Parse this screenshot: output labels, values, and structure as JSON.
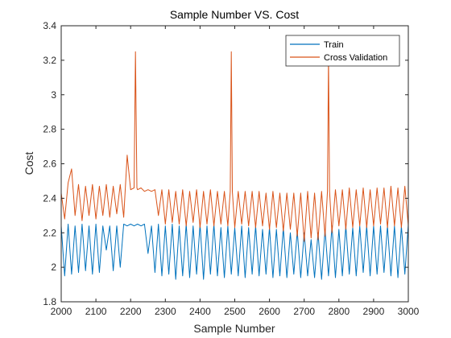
{
  "chart_data": {
    "type": "line",
    "title": "Sample Number VS. Cost",
    "xlabel": "Sample Number",
    "ylabel": "Cost",
    "xlim": [
      2000,
      3000
    ],
    "ylim": [
      1.8,
      3.4
    ],
    "xticks": [
      2000,
      2100,
      2200,
      2300,
      2400,
      2500,
      2600,
      2700,
      2800,
      2900,
      3000
    ],
    "xtick_labels": [
      "2000",
      "2100",
      "2200",
      "2300",
      "2400",
      "2500",
      "2600",
      "2700",
      "2800",
      "2900",
      "3000"
    ],
    "yticks": [
      1.8,
      2,
      2.2,
      2.4,
      2.6,
      2.8,
      3,
      3.2,
      3.4
    ],
    "ytick_labels": [
      "1.8",
      "2",
      "2.2",
      "2.4",
      "2.6",
      "2.8",
      "3",
      "3.2",
      "3.4"
    ],
    "grid": false,
    "legend_position": "top-right",
    "series": [
      {
        "name": "Train",
        "color": "#0072BD",
        "x": [
          2000,
          2010,
          2020,
          2030,
          2040,
          2050,
          2060,
          2070,
          2080,
          2090,
          2100,
          2110,
          2120,
          2130,
          2140,
          2150,
          2160,
          2170,
          2180,
          2190,
          2200,
          2210,
          2220,
          2230,
          2240,
          2250,
          2260,
          2270,
          2280,
          2290,
          2300,
          2310,
          2320,
          2330,
          2340,
          2350,
          2360,
          2370,
          2380,
          2390,
          2400,
          2410,
          2420,
          2430,
          2440,
          2450,
          2460,
          2470,
          2480,
          2490,
          2500,
          2510,
          2520,
          2530,
          2540,
          2550,
          2560,
          2570,
          2580,
          2590,
          2600,
          2610,
          2620,
          2630,
          2640,
          2650,
          2660,
          2670,
          2680,
          2690,
          2700,
          2710,
          2720,
          2730,
          2740,
          2750,
          2760,
          2770,
          2780,
          2790,
          2800,
          2810,
          2820,
          2830,
          2840,
          2850,
          2860,
          2870,
          2880,
          2890,
          2900,
          2910,
          2920,
          2930,
          2940,
          2950,
          2960,
          2970,
          2980,
          2990,
          3000
        ],
        "y": [
          2.24,
          1.95,
          2.25,
          1.96,
          2.24,
          1.97,
          2.25,
          1.98,
          2.24,
          1.96,
          2.25,
          1.97,
          2.24,
          2.1,
          2.24,
          1.98,
          2.24,
          2.0,
          2.25,
          2.24,
          2.25,
          2.24,
          2.25,
          2.24,
          2.25,
          2.08,
          2.24,
          1.97,
          2.25,
          1.95,
          2.24,
          1.96,
          2.25,
          1.93,
          2.24,
          1.95,
          2.25,
          1.94,
          2.24,
          1.96,
          2.25,
          1.93,
          2.24,
          1.96,
          2.25,
          1.95,
          2.23,
          1.94,
          2.24,
          1.96,
          2.23,
          1.95,
          2.24,
          1.94,
          2.23,
          1.96,
          2.24,
          1.95,
          2.22,
          1.96,
          2.23,
          1.94,
          2.22,
          1.95,
          2.23,
          1.94,
          2.2,
          1.96,
          2.21,
          1.94,
          2.2,
          1.95,
          2.16,
          1.94,
          2.2,
          1.93,
          2.22,
          1.95,
          2.24,
          1.94,
          2.22,
          1.95,
          2.24,
          1.96,
          2.23,
          1.95,
          2.24,
          1.97,
          2.24,
          1.95,
          2.24,
          1.96,
          2.24,
          1.97,
          2.24,
          1.95,
          2.24,
          1.94,
          2.24,
          1.96,
          2.25
        ]
      },
      {
        "name": "Cross Validation",
        "color": "#D95319",
        "x": [
          2000,
          2010,
          2020,
          2030,
          2040,
          2050,
          2060,
          2070,
          2080,
          2090,
          2100,
          2110,
          2120,
          2130,
          2140,
          2150,
          2160,
          2170,
          2180,
          2190,
          2200,
          2210,
          2214,
          2218,
          2220,
          2230,
          2240,
          2250,
          2260,
          2270,
          2280,
          2290,
          2300,
          2310,
          2320,
          2330,
          2340,
          2350,
          2360,
          2370,
          2380,
          2390,
          2400,
          2410,
          2420,
          2430,
          2440,
          2450,
          2460,
          2470,
          2480,
          2487,
          2490,
          2493,
          2500,
          2510,
          2520,
          2530,
          2540,
          2550,
          2560,
          2570,
          2580,
          2590,
          2600,
          2610,
          2620,
          2630,
          2640,
          2650,
          2660,
          2670,
          2680,
          2690,
          2700,
          2710,
          2720,
          2730,
          2740,
          2750,
          2760,
          2767,
          2770,
          2773,
          2780,
          2790,
          2800,
          2810,
          2820,
          2830,
          2840,
          2850,
          2860,
          2870,
          2880,
          2890,
          2900,
          2910,
          2920,
          2930,
          2940,
          2950,
          2960,
          2970,
          2980,
          2990,
          3000
        ],
        "y": [
          2.43,
          2.28,
          2.49,
          2.57,
          2.3,
          2.48,
          2.27,
          2.47,
          2.3,
          2.48,
          2.28,
          2.47,
          2.3,
          2.48,
          2.29,
          2.47,
          2.31,
          2.48,
          2.29,
          2.65,
          2.45,
          2.46,
          3.25,
          2.46,
          2.45,
          2.46,
          2.44,
          2.45,
          2.44,
          2.45,
          2.3,
          2.45,
          2.25,
          2.45,
          2.26,
          2.44,
          2.25,
          2.45,
          2.24,
          2.44,
          2.26,
          2.45,
          2.23,
          2.44,
          2.25,
          2.45,
          2.24,
          2.44,
          2.25,
          2.44,
          2.24,
          2.44,
          3.25,
          2.44,
          2.23,
          2.44,
          2.25,
          2.44,
          2.24,
          2.44,
          2.23,
          2.44,
          2.24,
          2.43,
          2.22,
          2.44,
          2.23,
          2.43,
          2.21,
          2.43,
          2.22,
          2.43,
          2.18,
          2.43,
          2.15,
          2.44,
          2.17,
          2.43,
          2.16,
          2.44,
          2.18,
          2.44,
          3.22,
          2.44,
          2.2,
          2.45,
          2.24,
          2.45,
          2.22,
          2.46,
          2.23,
          2.45,
          2.24,
          2.46,
          2.23,
          2.45,
          2.24,
          2.46,
          2.25,
          2.46,
          2.23,
          2.47,
          2.24,
          2.46,
          2.23,
          2.47,
          2.24
        ]
      }
    ]
  }
}
